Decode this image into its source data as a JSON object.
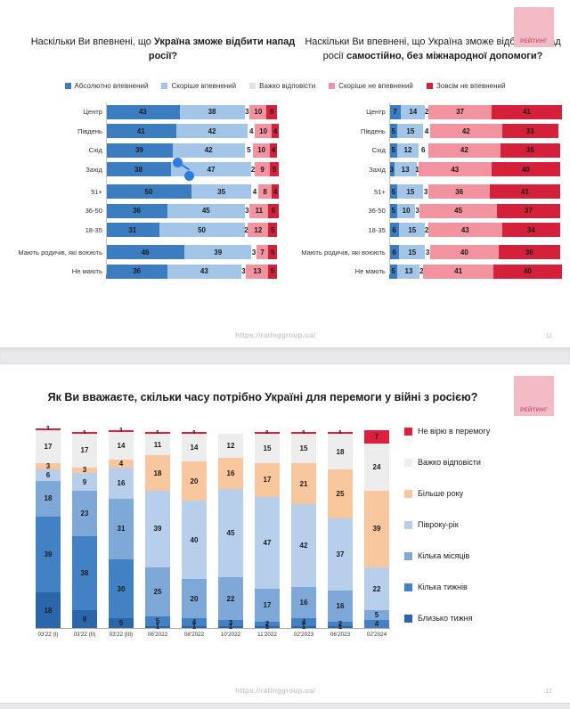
{
  "slide1": {
    "logo": "РЕЙТИНГ",
    "title_left": {
      "regular": "Наскільки Ви впевнені, що",
      "bold": "Україна зможе відбити напад росії?"
    },
    "title_right": {
      "regular": "Наскільки Ви впевнені, що Україна зможе відбити напад росії",
      "bold": "самостійно, без міжнародної допомоги?"
    },
    "footer_url": "https://ratinggroup.ua/",
    "page_number": "11"
  },
  "slide2": {
    "logo": "РЕЙТИНГ",
    "title": "Як Ви вважаєте, скільки часу потрібно Україні для перемоги у війні з росією?",
    "footer_url": "https://ratinggroup.ua/",
    "page_number": "12"
  },
  "chart_data": [
    {
      "id": "confidence-repel",
      "type": "bar",
      "orientation": "horizontal-stacked",
      "title": "Наскільки Ви впевнені, що Україна зможе відбити напад росії?",
      "legend_position": "top",
      "xlim": [
        0,
        100
      ],
      "categories": [
        "Центр",
        "Південь",
        "Схід",
        "Захід",
        "51+",
        "36-50",
        "18-35",
        "Мають родичів, які воюють",
        "Не мають"
      ],
      "group_breaks": [
        4,
        7
      ],
      "series": [
        {
          "name": "Абсолютно впевнений",
          "color": "#3c7dc1",
          "values": [
            43,
            41,
            39,
            38,
            50,
            36,
            31,
            46,
            36
          ]
        },
        {
          "name": "Скоріше впевнений",
          "color": "#a2c5e8",
          "values": [
            38,
            42,
            42,
            47,
            35,
            45,
            50,
            39,
            43
          ]
        },
        {
          "name": "Важко відповісти",
          "color": "#fcfcfc",
          "legend_color": "#e2e2e2",
          "values": [
            3,
            4,
            5,
            2,
            4,
            3,
            2,
            3,
            3
          ]
        },
        {
          "name": "Скоріше не впевнений",
          "color": "#f2939f",
          "values": [
            10,
            10,
            10,
            9,
            8,
            11,
            12,
            7,
            13
          ]
        },
        {
          "name": "Зовсім не впевнений",
          "color": "#d5203c",
          "values": [
            6,
            4,
            4,
            5,
            4,
            6,
            5,
            5,
            5
          ]
        }
      ]
    },
    {
      "id": "confidence-alone",
      "type": "bar",
      "orientation": "horizontal-stacked",
      "title": "Наскільки Ви впевнені, що Україна зможе відбити напад росії самостійно, без міжнародної допомоги?",
      "legend_position": "top",
      "xlim": [
        0,
        100
      ],
      "categories": [
        "Центр",
        "Південь",
        "Схід",
        "Захід",
        "51+",
        "36-50",
        "18-35",
        "Мають родичів, які воюють",
        "Не мають"
      ],
      "group_breaks": [
        4,
        7
      ],
      "series": [
        {
          "name": "Абсолютно впевнений",
          "color": "#3c7dc1",
          "values": [
            7,
            5,
            5,
            3,
            5,
            5,
            6,
            6,
            5
          ]
        },
        {
          "name": "Скоріше впевнений",
          "color": "#a2c5e8",
          "values": [
            14,
            15,
            12,
            13,
            15,
            10,
            15,
            15,
            13
          ]
        },
        {
          "name": "Важко відповісти",
          "color": "#fcfcfc",
          "legend_color": "#e2e2e2",
          "values": [
            2,
            4,
            6,
            1,
            3,
            3,
            2,
            3,
            2
          ]
        },
        {
          "name": "Скоріше не впевнений",
          "color": "#f2939f",
          "values": [
            37,
            42,
            42,
            43,
            36,
            45,
            43,
            40,
            41
          ]
        },
        {
          "name": "Зовсім не впевнений",
          "color": "#d5203c",
          "values": [
            41,
            33,
            35,
            40,
            41,
            37,
            34,
            36,
            40
          ]
        }
      ]
    },
    {
      "id": "time-to-victory",
      "type": "bar",
      "orientation": "vertical-stacked",
      "title": "Як Ви вважаєте, скільки часу потрібно Україні для перемоги у війні з росією?",
      "legend_position": "right",
      "ylim": [
        0,
        100
      ],
      "categories": [
        "03'22 (І)",
        "03'22 (ІІ)",
        "03'22 (ІІІ)",
        "06'2022",
        "08'2022",
        "10'2022",
        "11'2022",
        "02'2023",
        "06'2023",
        "02'2024"
      ],
      "series_order": "bottom-to-top",
      "series": [
        {
          "name": "Близько тижня",
          "color": "#2a67aa",
          "values": [
            18,
            9,
            5,
            1,
            1,
            1,
            1,
            1,
            1,
            0
          ]
        },
        {
          "name": "Кілька тижнів",
          "color": "#4181c4",
          "values": [
            39,
            38,
            30,
            5,
            4,
            3,
            2,
            4,
            2,
            4
          ]
        },
        {
          "name": "Кілька місяців",
          "color": "#7ea8d8",
          "values": [
            18,
            23,
            31,
            25,
            20,
            22,
            17,
            16,
            16,
            5
          ]
        },
        {
          "name": "Півроку-рік",
          "color": "#b7cfeb",
          "values": [
            6,
            9,
            16,
            39,
            40,
            45,
            47,
            42,
            37,
            22
          ]
        },
        {
          "name": "Більше року",
          "color": "#f8c79e",
          "values": [
            3,
            3,
            4,
            18,
            20,
            16,
            17,
            21,
            25,
            39
          ]
        },
        {
          "name": "Важко відповісти",
          "color": "#ededed",
          "values": [
            17,
            17,
            14,
            11,
            14,
            12,
            15,
            15,
            18,
            24
          ]
        },
        {
          "name": "Не вірю в перемогу",
          "color": "#df1f3e",
          "values": [
            1,
            1,
            1,
            1,
            1,
            0,
            1,
            1,
            1,
            7
          ]
        }
      ]
    }
  ]
}
